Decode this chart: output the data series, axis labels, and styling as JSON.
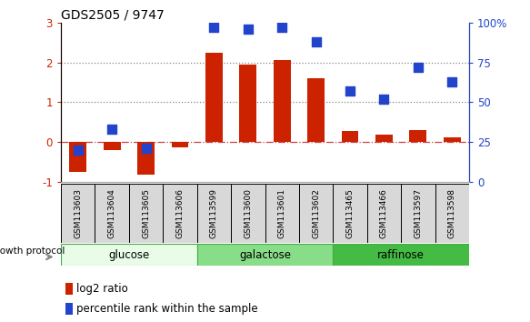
{
  "title": "GDS2505 / 9747",
  "samples": [
    "GSM113603",
    "GSM113604",
    "GSM113605",
    "GSM113606",
    "GSM113599",
    "GSM113600",
    "GSM113601",
    "GSM113602",
    "GSM113465",
    "GSM113466",
    "GSM113597",
    "GSM113598"
  ],
  "log2_ratio": [
    -0.75,
    -0.2,
    -0.82,
    -0.13,
    2.25,
    1.95,
    2.05,
    1.6,
    0.28,
    0.18,
    0.3,
    0.13
  ],
  "percentile_rank": [
    20,
    33,
    21,
    null,
    97,
    96,
    97,
    88,
    57,
    52,
    72,
    63
  ],
  "groups": [
    {
      "label": "glucose",
      "start": 0,
      "end": 4,
      "color": "#e8fce8"
    },
    {
      "label": "galactose",
      "start": 4,
      "end": 8,
      "color": "#88dd88"
    },
    {
      "label": "raffinose",
      "start": 8,
      "end": 12,
      "color": "#44bb44"
    }
  ],
  "ylim_left": [
    -1,
    3
  ],
  "ylim_right": [
    0,
    100
  ],
  "yticks_left": [
    -1,
    0,
    1,
    2,
    3
  ],
  "yticks_right": [
    0,
    25,
    50,
    75,
    100
  ],
  "ytick_labels_right": [
    "0",
    "25",
    "50",
    "75",
    "100%"
  ],
  "bar_color": "#cc2200",
  "dot_color": "#2244cc",
  "left_tick_color": "#cc2200",
  "dotted_line_color": "#888888",
  "hline_color": "#cc4444",
  "bar_width": 0.5,
  "dot_size": 50
}
